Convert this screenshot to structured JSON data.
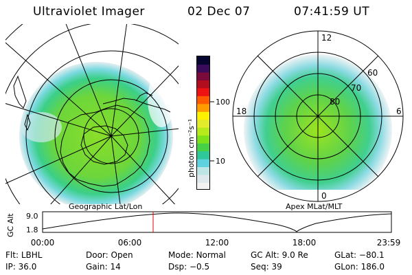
{
  "header": {
    "instrument": "Ultraviolet Imager",
    "date": "02 Dec 07",
    "time": "07:41:59 UT"
  },
  "left_panel": {
    "caption": "Geographic Lat/Lon"
  },
  "right_panel": {
    "caption": "Apex MLat/MLT",
    "mlt_labels": {
      "top": "12",
      "left": "18",
      "right": "6",
      "bottom": "0"
    },
    "lat_labels": [
      "60",
      "70",
      "80"
    ]
  },
  "colorbar": {
    "label": "photon cm⁻²s⁻¹",
    "ticks": [
      "100",
      "10"
    ],
    "scale": "log",
    "colors": [
      "#f2f2f2",
      "#dfe8ec",
      "#bfe6e6",
      "#5ed3df",
      "#2fc89a",
      "#46d146",
      "#7ee21a",
      "#b6ea1a",
      "#e3ec2a",
      "#fff200",
      "#ff9c00",
      "#ff5a00",
      "#ee1111",
      "#b20d1e",
      "#7a0a3a",
      "#3a0b5a",
      "#050530"
    ]
  },
  "altitude_plot": {
    "ylabel": "GC Alt",
    "yticks": [
      "9.0",
      "1.8"
    ],
    "xticks": [
      "00:00",
      "06:00",
      "12:00",
      "18:00",
      "23:59"
    ],
    "current_time_marker_color": "#dd0000"
  },
  "status": {
    "row1": [
      {
        "label": "Flt:",
        "value": "LBHL"
      },
      {
        "label": "Door:",
        "value": "Open"
      },
      {
        "label": "Mode:",
        "value": "Normal"
      },
      {
        "label": "GC Alt:",
        "value": "9.0 Re"
      },
      {
        "label": "GLat:",
        "value": "−80.1"
      }
    ],
    "row2": [
      {
        "label": "IP:",
        "value": "36.0"
      },
      {
        "label": "Gain:",
        "value": "14"
      },
      {
        "label": "Dsp:",
        "value": "−0.5"
      },
      {
        "label": "Seq:",
        "value": "39"
      },
      {
        "label": "GLon:",
        "value": "186.0"
      }
    ]
  }
}
